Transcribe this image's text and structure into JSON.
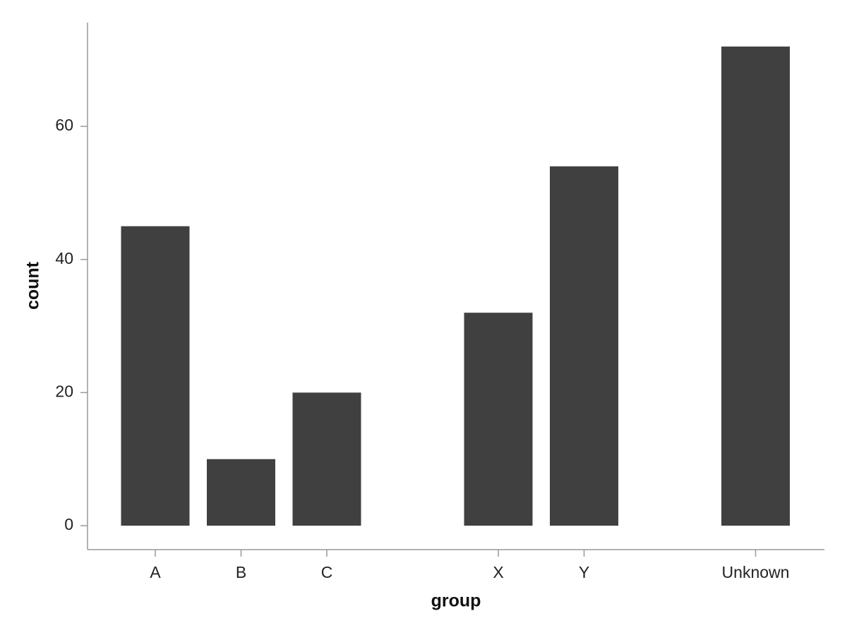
{
  "chart_data": {
    "type": "bar",
    "categories": [
      "A",
      "B",
      "C",
      null,
      "X",
      "Y",
      null,
      "Unknown"
    ],
    "values": [
      45,
      10,
      20,
      null,
      32,
      54,
      null,
      72
    ],
    "color": "#404040",
    "x_label": "group",
    "y_label": "count",
    "ylim": [
      -3.6,
      75.6
    ],
    "yticks": [
      0,
      20,
      40,
      60
    ],
    "grid": false
  }
}
